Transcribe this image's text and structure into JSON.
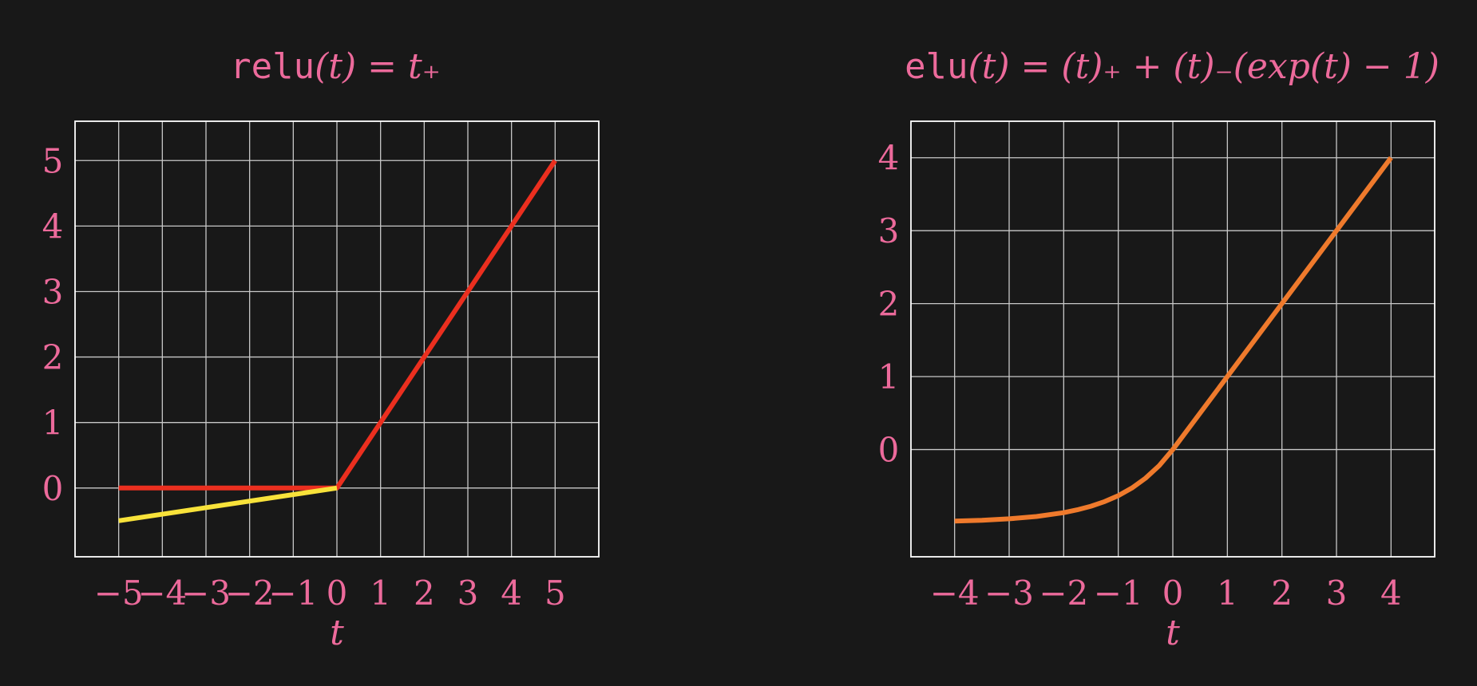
{
  "colors": {
    "background": "#181818",
    "text": "#ec6a9b",
    "grid": "#c8c8c8",
    "frame": "#ffffff"
  },
  "chart_data": [
    {
      "type": "line",
      "title_func": "relu",
      "title_rest": "(t) = t₊",
      "xlabel": "t",
      "ylabel": "",
      "xlim": [
        -6,
        6
      ],
      "ylim": [
        -1.05,
        5.6
      ],
      "x_ticks": [
        -5,
        -4,
        -3,
        -2,
        -1,
        0,
        1,
        2,
        3,
        4,
        5
      ],
      "x_tick_labels": [
        "−5",
        "−4",
        "−3",
        "−2",
        "−1",
        "0",
        "1",
        "2",
        "3",
        "4",
        "5"
      ],
      "y_ticks": [
        0,
        1,
        2,
        3,
        4,
        5
      ],
      "y_tick_labels": [
        "0",
        "1",
        "2",
        "3",
        "4",
        "5"
      ],
      "grid": true,
      "series": [
        {
          "color": "#eb2f1f",
          "x": [
            -5,
            0,
            5
          ],
          "y": [
            0,
            0,
            5
          ]
        },
        {
          "color": "#f8e23a",
          "x": [
            -5,
            0
          ],
          "y": [
            -0.5,
            0
          ]
        }
      ]
    },
    {
      "type": "line",
      "title_func": "elu",
      "title_rest": "(t) = (t)₊ + (t)₋(exp(t) − 1)",
      "xlabel": "t",
      "ylabel": "",
      "xlim": [
        -4.8,
        4.8
      ],
      "ylim": [
        -1.47,
        4.5
      ],
      "x_ticks": [
        -4,
        -3,
        -2,
        -1,
        0,
        1,
        2,
        3,
        4
      ],
      "x_tick_labels": [
        "−4",
        "−3",
        "−2",
        "−1",
        "0",
        "1",
        "2",
        "3",
        "4"
      ],
      "y_ticks": [
        0,
        1,
        2,
        3,
        4
      ],
      "y_tick_labels": [
        "0",
        "1",
        "2",
        "3",
        "4"
      ],
      "grid": true,
      "series": [
        {
          "color": "#ef7a2c",
          "x": [
            -4,
            -3.5,
            -3,
            -2.5,
            -2,
            -1.75,
            -1.5,
            -1.25,
            -1,
            -0.75,
            -0.5,
            -0.25,
            0,
            1,
            2,
            3,
            4
          ],
          "y": [
            -0.98,
            -0.97,
            -0.95,
            -0.918,
            -0.865,
            -0.826,
            -0.777,
            -0.713,
            -0.632,
            -0.528,
            -0.393,
            -0.221,
            0,
            1,
            2,
            3,
            4
          ]
        }
      ]
    }
  ]
}
